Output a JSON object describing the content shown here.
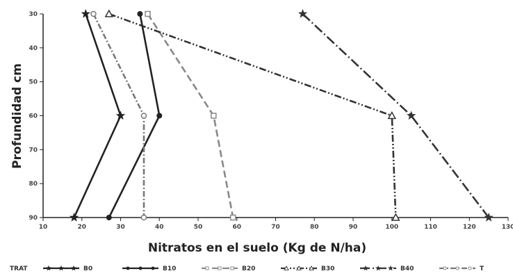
{
  "chart_data": {
    "type": "line",
    "xlabel": "Nitratos en el suelo (Kg de N/ha)",
    "ylabel": "Profundidad cm",
    "xlim": [
      10,
      130
    ],
    "ylim": [
      30,
      90
    ],
    "y_reversed": true,
    "x_ticks": [
      10,
      20,
      30,
      40,
      50,
      60,
      70,
      80,
      90,
      100,
      110,
      120,
      130
    ],
    "y_ticks": [
      30,
      40,
      50,
      60,
      70,
      80,
      90
    ],
    "legend_title": "TRAT",
    "legend_position": "bottom",
    "series": [
      {
        "name": "B0",
        "color": "#222222",
        "dash": "",
        "marker": "star",
        "x": [
          21,
          30,
          18
        ],
        "y": [
          30,
          60,
          90
        ]
      },
      {
        "name": "B10",
        "color": "#222222",
        "dash": "",
        "marker": "circle",
        "x": [
          35,
          40,
          27
        ],
        "y": [
          30,
          60,
          90
        ]
      },
      {
        "name": "B20",
        "color": "#888888",
        "dash": "10,5",
        "marker": "square",
        "x": [
          37,
          54,
          59
        ],
        "y": [
          30,
          60,
          90
        ]
      },
      {
        "name": "B30",
        "color": "#333333",
        "dash": "10,3,2,3,2,3",
        "marker": "triangle",
        "x": [
          27,
          100,
          101
        ],
        "y": [
          30,
          60,
          90
        ]
      },
      {
        "name": "B40",
        "color": "#333333",
        "dash": "14,4,2,4",
        "marker": "star",
        "x": [
          77,
          105,
          125
        ],
        "y": [
          30,
          60,
          90
        ]
      },
      {
        "name": "T",
        "color": "#777777",
        "dash": "8,3,2,3",
        "marker": "circle-open",
        "x": [
          23,
          36,
          36
        ],
        "y": [
          30,
          60,
          90
        ]
      }
    ]
  }
}
